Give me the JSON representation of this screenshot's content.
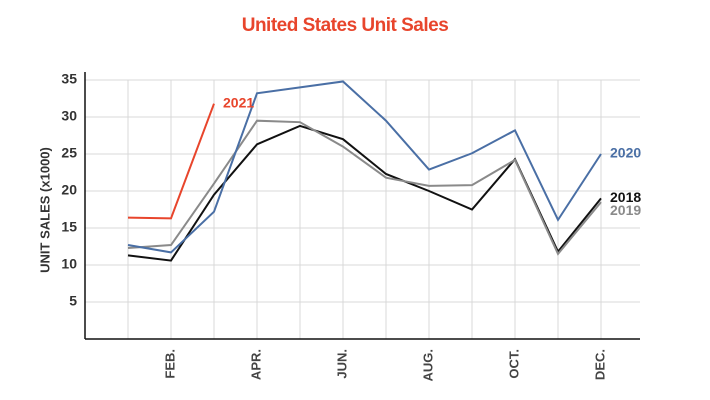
{
  "chart_data": {
    "type": "line",
    "title": "United States Unit Sales",
    "y_label": "UNIT SALES (x1000)",
    "categories": [
      null,
      "FEB.",
      null,
      "APR.",
      null,
      "JUN.",
      null,
      "AUG.",
      null,
      "OCT.",
      null,
      "DEC."
    ],
    "series": [
      {
        "name": "2018",
        "color": "#111111",
        "values": [
          11.3,
          10.6,
          19.5,
          26.3,
          28.8,
          27.0,
          22.3,
          20.0,
          17.5,
          24.3,
          11.8,
          19.0
        ]
      },
      {
        "name": "2019",
        "color": "#8a8a8a",
        "values": [
          12.3,
          12.7,
          21.0,
          29.5,
          29.3,
          26.0,
          21.8,
          20.7,
          20.8,
          24.2,
          11.5,
          18.5
        ]
      },
      {
        "name": "2020",
        "color": "#4a6fa5",
        "values": [
          12.7,
          11.7,
          17.2,
          33.2,
          34.0,
          34.8,
          29.5,
          22.9,
          25.1,
          28.2,
          16.1,
          25.0
        ]
      },
      {
        "name": "2021",
        "color": "#e8452c",
        "values": [
          16.4,
          16.3,
          31.8,
          null,
          null,
          null,
          null,
          null,
          null,
          null,
          null,
          null
        ]
      }
    ],
    "ylim": [
      0,
      35
    ],
    "yticks": [
      5,
      10,
      15,
      20,
      25,
      30,
      35
    ],
    "grid": true
  }
}
